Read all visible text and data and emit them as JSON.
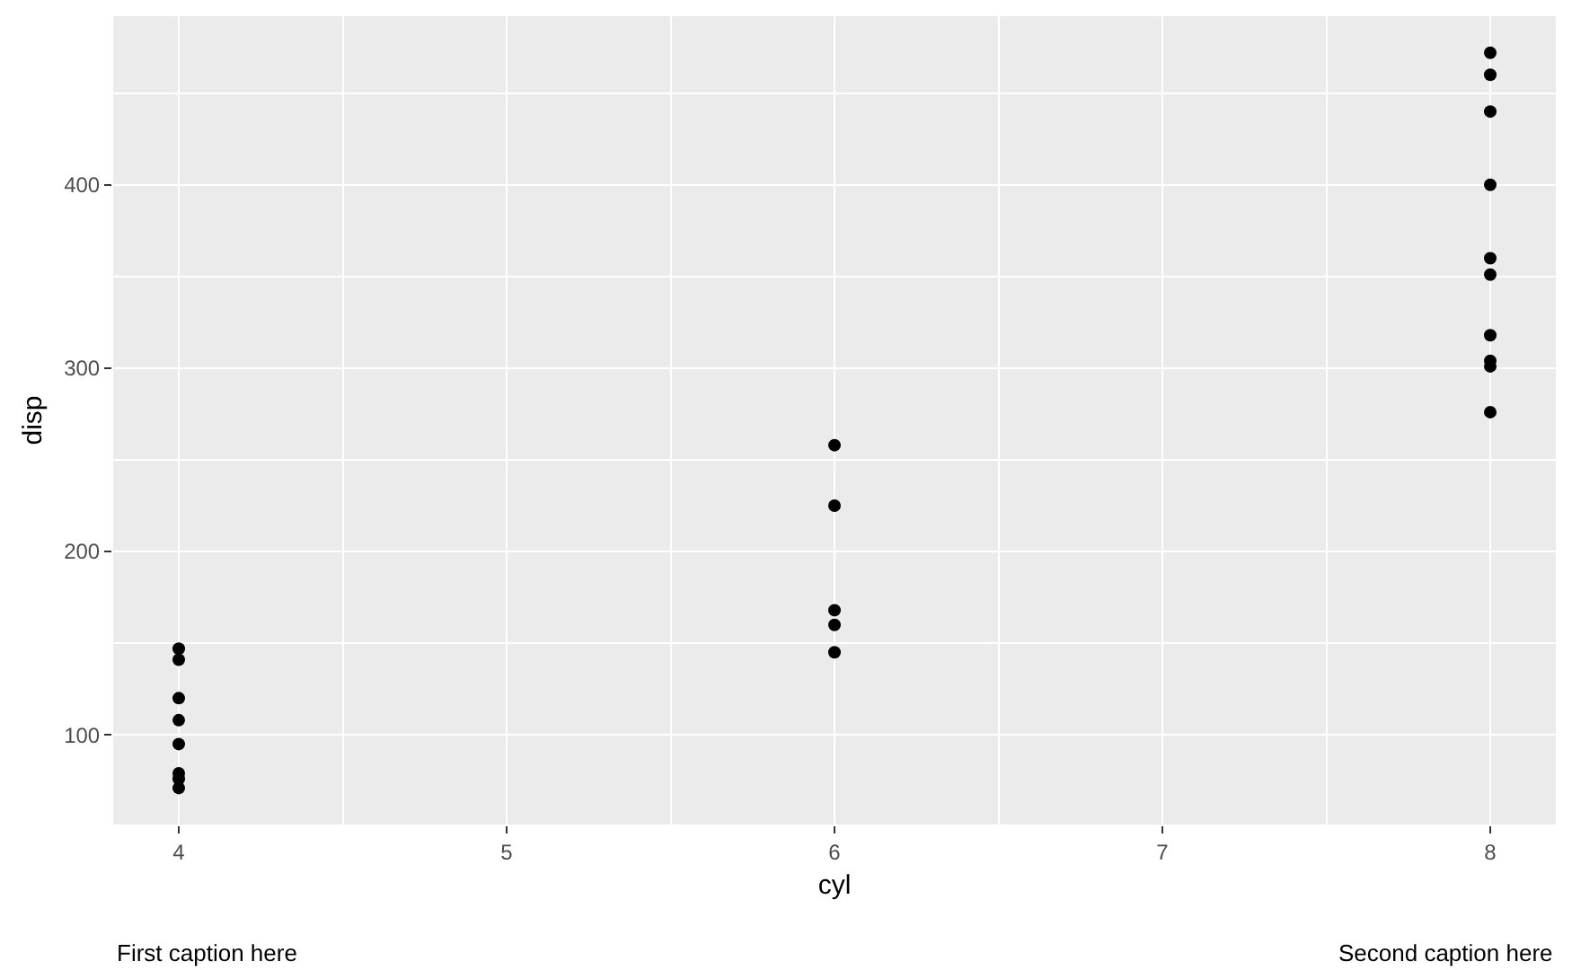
{
  "chart_data": {
    "type": "scatter",
    "xlabel": "cyl",
    "ylabel": "disp",
    "x": [
      4,
      4,
      4,
      4,
      4,
      4,
      4,
      4,
      6,
      6,
      6,
      6,
      6,
      8,
      8,
      8,
      8,
      8,
      8,
      8,
      8,
      8,
      8
    ],
    "values": [
      147,
      141,
      120,
      108,
      95,
      79,
      76,
      71,
      258,
      225,
      168,
      160,
      145,
      472,
      460,
      440,
      400,
      360,
      351,
      318,
      304,
      301,
      276
    ],
    "color": "#000000",
    "marker": "circle",
    "xlim": [
      3.8,
      8.2
    ],
    "xticks": [
      4,
      5,
      6,
      7,
      8
    ],
    "ylim": [
      51.1,
      492
    ],
    "yticks": [
      100,
      200,
      300,
      400
    ],
    "grid": true,
    "annotations": [
      "First caption here",
      "Second caption here"
    ]
  }
}
